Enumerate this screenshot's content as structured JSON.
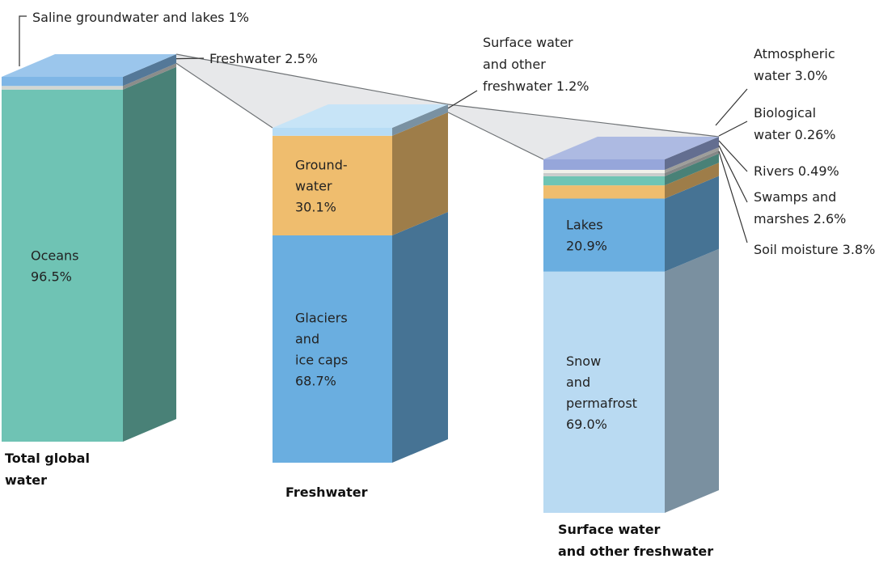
{
  "chart_data": {
    "type": "bar",
    "stacked": true,
    "style": "3d-stacked-columns",
    "bars": [
      {
        "name": "Total global water",
        "name_lines": [
          "Total global",
          "water"
        ],
        "segments": [
          {
            "label": "Oceans",
            "value": 96.5,
            "value_label": "96.5%",
            "color": "#6fc3b4",
            "label_lines": [
              "Oceans",
              "96.5%"
            ]
          },
          {
            "label": "Saline groundwater and lakes",
            "value": 1,
            "value_label": "1%",
            "color": "#d2d6d2"
          },
          {
            "label": "Freshwater",
            "value": 2.5,
            "value_label": "2.5%",
            "color": "#7fb6e6"
          }
        ]
      },
      {
        "name": "Freshwater",
        "name_lines": [
          "Freshwater"
        ],
        "segments": [
          {
            "label": "Glaciers and ice caps",
            "value": 68.7,
            "value_label": "68.7%",
            "color": "#6aaee0",
            "label_lines": [
              "Glaciers",
              "and",
              "ice caps",
              "68.7%"
            ]
          },
          {
            "label": "Groundwater",
            "value": 30.1,
            "value_label": "30.1%",
            "color": "#efbd6e",
            "label_lines": [
              "Ground-",
              "water",
              "30.1%"
            ]
          },
          {
            "label": "Surface water and other freshwater",
            "value": 1.2,
            "value_label": "1.2%",
            "color": "#b7dcf5"
          }
        ]
      },
      {
        "name": "Surface water and other freshwater",
        "name_lines": [
          "Surface water",
          "and other freshwater"
        ],
        "segments": [
          {
            "label": "Snow and permafrost",
            "value": 69.0,
            "value_label": "69.0%",
            "color": "#b9daf2",
            "label_lines": [
              "Snow",
              "and",
              "permafrost",
              "69.0%"
            ]
          },
          {
            "label": "Lakes",
            "value": 20.9,
            "value_label": "20.9%",
            "color": "#6aaee0",
            "label_lines": [
              "Lakes",
              "20.9%"
            ]
          },
          {
            "label": "Soil moisture",
            "value": 3.8,
            "value_label": "3.8%",
            "color": "#efbd6e"
          },
          {
            "label": "Swamps and marshes",
            "value": 2.6,
            "value_label": "2.6%",
            "color": "#6ec4b4"
          },
          {
            "label": "Rivers",
            "value": 0.49,
            "value_label": "0.49%",
            "color": "#c9cccc"
          },
          {
            "label": "Biological water",
            "value": 0.26,
            "value_label": "0.26%",
            "color": "#f0f0ea"
          },
          {
            "label": "Atmospheric water",
            "value": 3.0,
            "value_label": "3.0%",
            "color": "#96a6da"
          }
        ]
      }
    ],
    "annotations": [
      {
        "lines": [
          "Saline groundwater and lakes 1%"
        ],
        "bar": 0,
        "segment": 1
      },
      {
        "lines": [
          "Freshwater 2.5%"
        ],
        "bar": 0,
        "segment": 2
      },
      {
        "lines": [
          "Surface water",
          "and other",
          "freshwater 1.2%"
        ],
        "bar": 1,
        "segment": 2
      },
      {
        "lines": [
          "Atmospheric",
          "water 3.0%"
        ],
        "bar": 2,
        "segment": 6
      },
      {
        "lines": [
          "Biological",
          "water 0.26%"
        ],
        "bar": 2,
        "segment": 5
      },
      {
        "lines": [
          "Rivers 0.49%"
        ],
        "bar": 2,
        "segment": 4
      },
      {
        "lines": [
          "Swamps and",
          "marshes 2.6%"
        ],
        "bar": 2,
        "segment": 3
      },
      {
        "lines": [
          "Soil moisture 3.8%"
        ],
        "bar": 2,
        "segment": 2
      }
    ]
  }
}
